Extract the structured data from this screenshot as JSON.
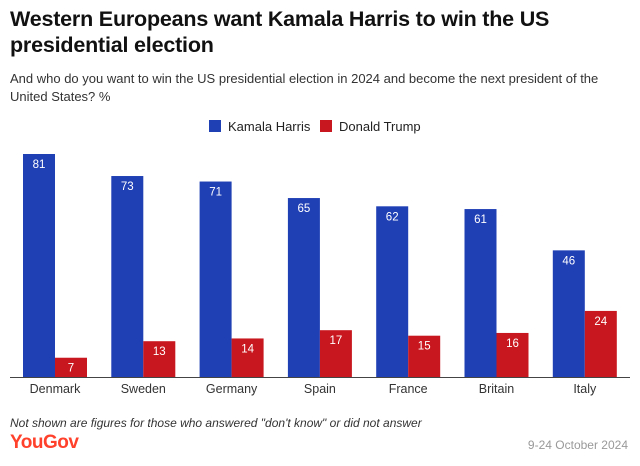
{
  "title": "Western Europeans want Kamala Harris to win the US presidential election",
  "subtitle": "And who do you want to win the US presidential election in 2024 and become the next president of the United States? %",
  "footnote": "Not shown are figures for those who answered \"don't know\" or did not answer",
  "brand": "YouGov",
  "date": "9-24 October 2024",
  "colors": {
    "harris": "#1f3fb5",
    "trump": "#c8171e",
    "brand": "#ff412c"
  },
  "chart_data": {
    "type": "bar",
    "categories": [
      "Denmark",
      "Sweden",
      "Germany",
      "Spain",
      "France",
      "Britain",
      "Italy"
    ],
    "series": [
      {
        "name": "Kamala Harris",
        "values": [
          81,
          73,
          71,
          65,
          62,
          61,
          46
        ],
        "color": "#1f3fb5"
      },
      {
        "name": "Donald Trump",
        "values": [
          7,
          13,
          14,
          17,
          15,
          16,
          24
        ],
        "color": "#c8171e"
      }
    ],
    "ylim": [
      0,
      81
    ],
    "grid": false,
    "legend": "top-center",
    "data_labels": true
  }
}
